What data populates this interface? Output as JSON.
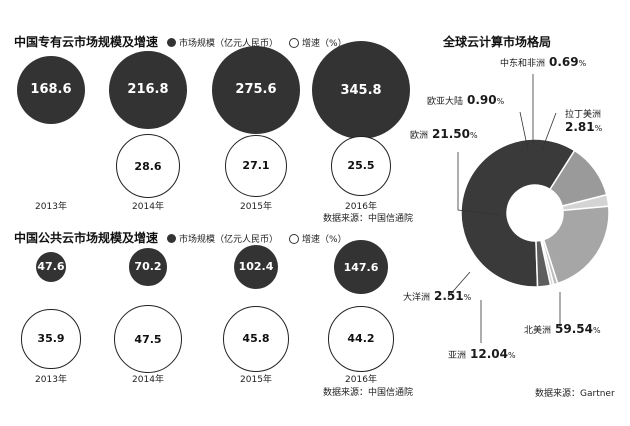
{
  "private_cloud": {
    "title": "中国专有云市场规模及增速",
    "legend_scale": "市场规模（亿元人民币）",
    "legend_growth": "增速（%）",
    "source": "数据来源：中国信通院"
  },
  "public_cloud": {
    "title": "中国公共云市场规模及增速",
    "legend_scale": "市场规模（亿元人民币）",
    "legend_growth": "增速（%）",
    "source": "数据来源：中国信通院"
  },
  "global": {
    "title": "全球云计算市场格局",
    "source": "数据来源：Gartner"
  },
  "chart_data": [
    {
      "type": "bubble",
      "title": "中国专有云市场规模及增速",
      "categories": [
        "2013年",
        "2014年",
        "2015年",
        "2016年"
      ],
      "series": [
        {
          "name": "市场规模（亿元人民币）",
          "values": [
            168.6,
            216.8,
            275.6,
            345.8
          ]
        },
        {
          "name": "增速（%）",
          "values": [
            null,
            28.6,
            27.1,
            25.5
          ]
        }
      ]
    },
    {
      "type": "bubble",
      "title": "中国公共云市场规模及增速",
      "categories": [
        "2013年",
        "2014年",
        "2015年",
        "2016年"
      ],
      "series": [
        {
          "name": "市场规模（亿元人民币）",
          "values": [
            47.6,
            70.2,
            102.4,
            147.6
          ]
        },
        {
          "name": "增速（%）",
          "values": [
            35.9,
            47.5,
            45.8,
            44.2
          ]
        }
      ]
    },
    {
      "type": "pie",
      "title": "全球云计算市场格局",
      "labels": [
        "北美洲",
        "亚洲",
        "大洋洲",
        "欧洲",
        "欧亚大陆",
        "中东和非洲",
        "拉丁美洲"
      ],
      "values": [
        59.54,
        12.04,
        2.51,
        21.5,
        0.9,
        0.69,
        2.81
      ],
      "display": [
        "59.54",
        "12.04",
        "2.51",
        "21.50",
        "0.90",
        "0.69",
        "2.81"
      ],
      "unit": "%",
      "colors": [
        "#3a3a3a",
        "#9a9a9a",
        "#d4d4d4",
        "#a6a6a6",
        "#bdbdbd",
        "#d8d8d8",
        "#5e5e5e"
      ]
    }
  ]
}
